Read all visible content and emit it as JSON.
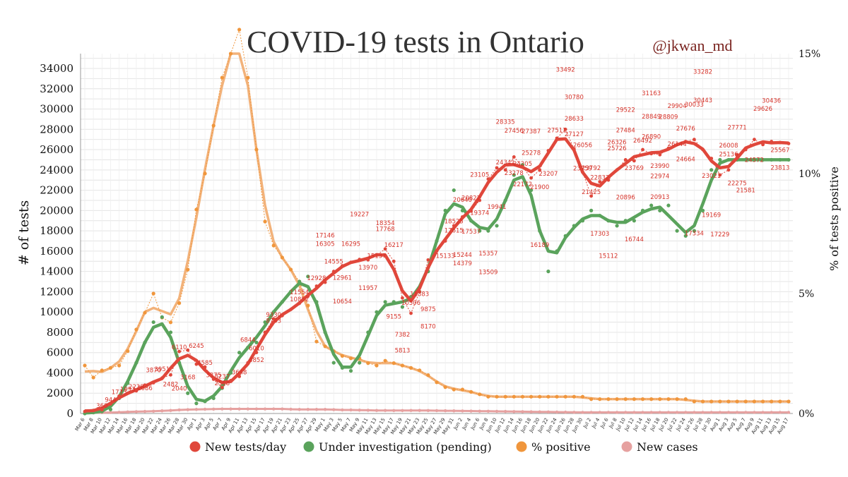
{
  "title": "COVID-19 tests in Ontario",
  "handle": "@jkwan_md",
  "colors": {
    "tests": "#e0473b",
    "pending": "#5aa35c",
    "positive": "#f0963c",
    "positive_smooth": "#f2b27a",
    "cases": "#e6a1a0"
  },
  "legend": [
    {
      "label": "New tests/day",
      "color": "#e0473b"
    },
    {
      "label": "Under investigation (pending)",
      "color": "#5aa35c"
    },
    {
      "label": "% positive",
      "color": "#f0963c"
    },
    {
      "label": "New cases",
      "color": "#e6a1a0"
    }
  ],
  "chart_data": {
    "type": "line",
    "title": "COVID-19 tests in Ontario",
    "ylabel": "# of tests",
    "y2label": "% of tests positive",
    "ylim": [
      0,
      34000
    ],
    "y2lim": [
      0,
      15
    ],
    "yticks": [
      0,
      2000,
      4000,
      6000,
      8000,
      10000,
      12000,
      14000,
      16000,
      18000,
      20000,
      22000,
      24000,
      26000,
      28000,
      30000,
      32000,
      34000
    ],
    "y2ticks": [
      "0%",
      "5%",
      "10%",
      "15%"
    ],
    "grid": true,
    "legend_position": "bottom",
    "x": [
      "Mar 6",
      "Mar 8",
      "Mar 10",
      "Mar 12",
      "Mar 14",
      "Mar 16",
      "Mar 18",
      "Mar 20",
      "Mar 22",
      "Mar 24",
      "Mar 26",
      "Mar 28",
      "Mar 30",
      "Apr 1",
      "Apr 3",
      "Apr 5",
      "Apr 7",
      "Apr 9",
      "Apr 11",
      "Apr 13",
      "Apr 15",
      "Apr 17",
      "Apr 19",
      "Apr 21",
      "Apr 23",
      "Apr 25",
      "Apr 27",
      "Apr 29",
      "May 1",
      "May 3",
      "May 5",
      "May 7",
      "May 9",
      "May 11",
      "May 13",
      "May 15",
      "May 17",
      "May 19",
      "May 21",
      "May 23",
      "May 25",
      "May 27",
      "May 29",
      "May 31",
      "Jun 2",
      "Jun 4",
      "Jun 6",
      "Jun 8",
      "Jun 10",
      "Jun 12",
      "Jun 14",
      "Jun 16",
      "Jun 18",
      "Jun 20",
      "Jun 22",
      "Jun 24",
      "Jun 26",
      "Jun 28",
      "Jun 30",
      "Jul 2",
      "Jul 4",
      "Jul 6",
      "Jul 8",
      "Jul 10",
      "Jul 12",
      "Jul 14",
      "Jul 16",
      "Jul 18",
      "Jul 20",
      "Jul 22",
      "Jul 24",
      "Jul 26",
      "Jul 28",
      "Jul 30",
      "Aug 1",
      "Aug 3",
      "Aug 5",
      "Aug 7",
      "Aug 9",
      "Aug 11",
      "Aug 13",
      "Aug 15",
      "Aug 17"
    ],
    "series": [
      {
        "name": "New tests/day",
        "axis": "left",
        "values": [
          200,
          300,
          360,
          944,
          1713,
          1993,
          2228,
          2800,
          3030,
          3500,
          3800,
          6110,
          6245,
          4859,
          4585,
          3375,
          2568,
          3237,
          3648,
          5000,
          6010,
          8000,
          9330,
          9642,
          10252,
          10852,
          11554,
          12550,
          12928,
          14000,
          14555,
          14900,
          15179,
          15137,
          15600,
          16217,
          15000,
          11383,
          9875,
          12000,
          15133,
          16000,
          17000,
          18500,
          19374,
          19941,
          21000,
          23105,
          24205,
          24000,
          25278,
          24300,
          23207,
          24000,
          25900,
          27127,
          28000,
          26056,
          23792,
          21425,
          22832,
          23000,
          24000,
          25000,
          24900,
          26000,
          25600,
          25500,
          26144,
          26500,
          26800,
          27000,
          26000,
          25136,
          23500,
          24000,
          25500,
          26000,
          27000,
          26500,
          26800,
          26700,
          26600
        ]
      },
      {
        "name": "Under investigation (pending)",
        "axis": "left",
        "values": [
          0,
          100,
          200,
          400,
          1500,
          3000,
          5000,
          7000,
          9000,
          9500,
          8000,
          5000,
          2000,
          1000,
          1200,
          1500,
          2500,
          4000,
          6000,
          6500,
          7000,
          9000,
          10000,
          11000,
          12000,
          13000,
          13500,
          11000,
          8000,
          5000,
          4500,
          4200,
          5000,
          8000,
          10000,
          11000,
          11000,
          10500,
          11500,
          12000,
          14000,
          17000,
          20000,
          22000,
          20000,
          19000,
          18000,
          18000,
          18500,
          21000,
          23500,
          24500,
          22000,
          18000,
          14000,
          16000,
          17500,
          18500,
          19000,
          20000,
          19500,
          19000,
          18500,
          19000,
          19000,
          20000,
          20500,
          20000,
          20500,
          18000,
          17500,
          18000,
          20000,
          24000,
          25000,
          25000,
          25000,
          25000,
          25000,
          25000,
          25000,
          25000,
          25000
        ]
      },
      {
        "name": "% positive",
        "axis": "right",
        "values": [
          2.0,
          1.5,
          1.8,
          1.9,
          2.0,
          2.6,
          3.5,
          4.2,
          5.0,
          4.0,
          3.8,
          4.6,
          6.0,
          8.5,
          10.0,
          12.0,
          14.0,
          15.0,
          16.0,
          14.0,
          11.0,
          8.0,
          7.0,
          6.5,
          6.0,
          5.5,
          4.5,
          3.0,
          2.8,
          2.6,
          2.4,
          2.3,
          2.3,
          2.1,
          2.0,
          2.2,
          2.1,
          2.0,
          1.9,
          1.8,
          1.6,
          1.3,
          1.1,
          1.0,
          1.0,
          0.9,
          0.8,
          0.7,
          0.7,
          0.7,
          0.7,
          0.7,
          0.7,
          0.7,
          0.7,
          0.7,
          0.7,
          0.7,
          0.7,
          0.6,
          0.6,
          0.6,
          0.6,
          0.6,
          0.6,
          0.6,
          0.6,
          0.6,
          0.6,
          0.6,
          0.6,
          0.5,
          0.5,
          0.5,
          0.5,
          0.5,
          0.5,
          0.5,
          0.5,
          0.5,
          0.5,
          0.5,
          0.5
        ]
      },
      {
        "name": "New cases",
        "axis": "left",
        "values": [
          50,
          60,
          80,
          100,
          120,
          150,
          180,
          200,
          220,
          260,
          300,
          350,
          380,
          400,
          420,
          430,
          450,
          450,
          450,
          450,
          450,
          450,
          450,
          450,
          420,
          400,
          400,
          400,
          400,
          380,
          350,
          350,
          330,
          320,
          300,
          300,
          290,
          290,
          300,
          300,
          290,
          280,
          270,
          260,
          250,
          240,
          230,
          220,
          210,
          200,
          190,
          180,
          170,
          160,
          150,
          140,
          130,
          120,
          110,
          110,
          110,
          110,
          110,
          110,
          110,
          110,
          110,
          110,
          110,
          110,
          110,
          110,
          110,
          110,
          110,
          110,
          110,
          110,
          110,
          110,
          110,
          110,
          110
        ]
      }
    ],
    "data_labels": [
      {
        "x": "Mar 10",
        "y": 360,
        "text": "360"
      },
      {
        "x": "Mar 12",
        "y": 944,
        "text": "944"
      },
      {
        "x": "Mar 14",
        "y": 1713,
        "text": "1713"
      },
      {
        "x": "Mar 16",
        "y": 1993,
        "text": "1993"
      },
      {
        "x": "Mar 18",
        "y": 2228,
        "text": "2228"
      },
      {
        "x": "Mar 20",
        "y": 2086,
        "text": "2086"
      },
      {
        "x": "Mar 22",
        "y": 3870,
        "text": "3870"
      },
      {
        "x": "Mar 24",
        "y": 3951,
        "text": "3951"
      },
      {
        "x": "Mar 26",
        "y": 2482,
        "text": "2482"
      },
      {
        "x": "Mar 28",
        "y": 2040,
        "text": "2040"
      },
      {
        "x": "Mar 28",
        "y": 6110,
        "text": "6110"
      },
      {
        "x": "Mar 30",
        "y": 3168,
        "text": "3168"
      },
      {
        "x": "Apr 1",
        "y": 6245,
        "text": "6245"
      },
      {
        "x": "Apr 3",
        "y": 4585,
        "text": "4585"
      },
      {
        "x": "Apr 5",
        "y": 3375,
        "text": "3375"
      },
      {
        "x": "Apr 7",
        "y": 3237,
        "text": "3237"
      },
      {
        "x": "Apr 7",
        "y": 2568,
        "text": "2568"
      },
      {
        "x": "Apr 11",
        "y": 3648,
        "text": "3648"
      },
      {
        "x": "Apr 13",
        "y": 6844,
        "text": "6844"
      },
      {
        "x": "Apr 15",
        "y": 4852,
        "text": "4852"
      },
      {
        "x": "Apr 15",
        "y": 6010,
        "text": "6010"
      },
      {
        "x": "Apr 19",
        "y": 9330,
        "text": "9330"
      },
      {
        "x": "Apr 19",
        "y": 8743,
        "text": "8743"
      },
      {
        "x": "Apr 25",
        "y": 11554,
        "text": "11554"
      },
      {
        "x": "Apr 25",
        "y": 10852,
        "text": "10852"
      },
      {
        "x": "Apr 29",
        "y": 12928,
        "text": "12928"
      },
      {
        "x": "May 1",
        "y": 16305,
        "text": "16305"
      },
      {
        "x": "May 1",
        "y": 17146,
        "text": "17146"
      },
      {
        "x": "May 3",
        "y": 14555,
        "text": "14555"
      },
      {
        "x": "May 5",
        "y": 12961,
        "text": "12961"
      },
      {
        "x": "May 5",
        "y": 10654,
        "text": "10654"
      },
      {
        "x": "May 7",
        "y": 16295,
        "text": "16295"
      },
      {
        "x": "May 9",
        "y": 19227,
        "text": "19227"
      },
      {
        "x": "May 11",
        "y": 13970,
        "text": "13970"
      },
      {
        "x": "May 11",
        "y": 11957,
        "text": "11957"
      },
      {
        "x": "May 13",
        "y": 15137,
        "text": "15137"
      },
      {
        "x": "May 15",
        "y": 18354,
        "text": "18354"
      },
      {
        "x": "May 15",
        "y": 17768,
        "text": "17768"
      },
      {
        "x": "May 17",
        "y": 16217,
        "text": "16217"
      },
      {
        "x": "May 17",
        "y": 9155,
        "text": "9155"
      },
      {
        "x": "May 19",
        "y": 7382,
        "text": "7382"
      },
      {
        "x": "May 19",
        "y": 5813,
        "text": "5813"
      },
      {
        "x": "May 21",
        "y": 10506,
        "text": "10506"
      },
      {
        "x": "May 23",
        "y": 11383,
        "text": "11383"
      },
      {
        "x": "May 25",
        "y": 9875,
        "text": "9875"
      },
      {
        "x": "May 25",
        "y": 8170,
        "text": "8170"
      },
      {
        "x": "May 29",
        "y": 15133,
        "text": "15133"
      },
      {
        "x": "May 31",
        "y": 17615,
        "text": "17615"
      },
      {
        "x": "May 31",
        "y": 18525,
        "text": "18525"
      },
      {
        "x": "Jun 2",
        "y": 20640,
        "text": "20640"
      },
      {
        "x": "Jun 2",
        "y": 15244,
        "text": "15244"
      },
      {
        "x": "Jun 2",
        "y": 14379,
        "text": "14379"
      },
      {
        "x": "Jun 4",
        "y": 17537,
        "text": "17537"
      },
      {
        "x": "Jun 4",
        "y": 20822,
        "text": "20822"
      },
      {
        "x": "Jun 6",
        "y": 23105,
        "text": "23105"
      },
      {
        "x": "Jun 6",
        "y": 19374,
        "text": "19374"
      },
      {
        "x": "Jun 8",
        "y": 15357,
        "text": "15357"
      },
      {
        "x": "Jun 8",
        "y": 13509,
        "text": "13509"
      },
      {
        "x": "Jun 10",
        "y": 19941,
        "text": "19941"
      },
      {
        "x": "Jun 12",
        "y": 24341,
        "text": "24341"
      },
      {
        "x": "Jun 12",
        "y": 28335,
        "text": "28335"
      },
      {
        "x": "Jun 14",
        "y": 27456,
        "text": "27456"
      },
      {
        "x": "Jun 14",
        "y": 23278,
        "text": "23278"
      },
      {
        "x": "Jun 16",
        "y": 22172,
        "text": "22172"
      },
      {
        "x": "Jun 16",
        "y": 24205,
        "text": "24205"
      },
      {
        "x": "Jun 18",
        "y": 25278,
        "text": "25278"
      },
      {
        "x": "Jun 18",
        "y": 27387,
        "text": "27387"
      },
      {
        "x": "Jun 20",
        "y": 21900,
        "text": "21900"
      },
      {
        "x": "Jun 20",
        "y": 16189,
        "text": "16189"
      },
      {
        "x": "Jun 22",
        "y": 23207,
        "text": "23207"
      },
      {
        "x": "Jun 24",
        "y": 27511,
        "text": "27511"
      },
      {
        "x": "Jun 26",
        "y": 33492,
        "text": "33492"
      },
      {
        "x": "Jun 28",
        "y": 30780,
        "text": "30780"
      },
      {
        "x": "Jun 28",
        "y": 28633,
        "text": "28633"
      },
      {
        "x": "Jun 28",
        "y": 27127,
        "text": "27127"
      },
      {
        "x": "Jun 30",
        "y": 26056,
        "text": "26056"
      },
      {
        "x": "Jun 30",
        "y": 23759,
        "text": "23759"
      },
      {
        "x": "Jul 2",
        "y": 23792,
        "text": "23792"
      },
      {
        "x": "Jul 2",
        "y": 21425,
        "text": "21425"
      },
      {
        "x": "Jul 4",
        "y": 22832,
        "text": "22832"
      },
      {
        "x": "Jul 4",
        "y": 17303,
        "text": "17303"
      },
      {
        "x": "Jul 6",
        "y": 15112,
        "text": "15112"
      },
      {
        "x": "Jul 8",
        "y": 26326,
        "text": "26326"
      },
      {
        "x": "Jul 8",
        "y": 25726,
        "text": "25726"
      },
      {
        "x": "Jul 10",
        "y": 29522,
        "text": "29522"
      },
      {
        "x": "Jul 10",
        "y": 27484,
        "text": "27484"
      },
      {
        "x": "Jul 10",
        "y": 20896,
        "text": "20896"
      },
      {
        "x": "Jul 12",
        "y": 16744,
        "text": "16744"
      },
      {
        "x": "Jul 12",
        "y": 23769,
        "text": "23769"
      },
      {
        "x": "Jul 14",
        "y": 26492,
        "text": "26492"
      },
      {
        "x": "Jul 16",
        "y": 28849,
        "text": "28849"
      },
      {
        "x": "Jul 16",
        "y": 31163,
        "text": "31163"
      },
      {
        "x": "Jul 16",
        "y": 26890,
        "text": "26890"
      },
      {
        "x": "Jul 18",
        "y": 22974,
        "text": "22974"
      },
      {
        "x": "Jul 18",
        "y": 20913,
        "text": "20913"
      },
      {
        "x": "Jul 18",
        "y": 23990,
        "text": "23990"
      },
      {
        "x": "Jul 20",
        "y": 28809,
        "text": "28809"
      },
      {
        "x": "Jul 22",
        "y": 29904,
        "text": "29904"
      },
      {
        "x": "Jul 22",
        "y": 26144,
        "text": "26144"
      },
      {
        "x": "Jul 24",
        "y": 24664,
        "text": "24664"
      },
      {
        "x": "Jul 24",
        "y": 27676,
        "text": "27676"
      },
      {
        "x": "Jul 26",
        "y": 17334,
        "text": "17334"
      },
      {
        "x": "Jul 26",
        "y": 30033,
        "text": "30033"
      },
      {
        "x": "Jul 28",
        "y": 33282,
        "text": "33282"
      },
      {
        "x": "Jul 28",
        "y": 30443,
        "text": "30443"
      },
      {
        "x": "Jul 30",
        "y": 23021,
        "text": "23021"
      },
      {
        "x": "Jul 30",
        "y": 19169,
        "text": "19169"
      },
      {
        "x": "Aug 1",
        "y": 17229,
        "text": "17229"
      },
      {
        "x": "Aug 3",
        "y": 26008,
        "text": "26008"
      },
      {
        "x": "Aug 3",
        "y": 25136,
        "text": "25136"
      },
      {
        "x": "Aug 5",
        "y": 27771,
        "text": "27771"
      },
      {
        "x": "Aug 5",
        "y": 22275,
        "text": "22275"
      },
      {
        "x": "Aug 7",
        "y": 21581,
        "text": "21581"
      },
      {
        "x": "Aug 9",
        "y": 24572,
        "text": "24572"
      },
      {
        "x": "Aug 11",
        "y": 29626,
        "text": "29626"
      },
      {
        "x": "Aug 13",
        "y": 30436,
        "text": "30436"
      },
      {
        "x": "Aug 15",
        "y": 25567,
        "text": "25567"
      },
      {
        "x": "Aug 15",
        "y": 23813,
        "text": "23813"
      }
    ]
  }
}
